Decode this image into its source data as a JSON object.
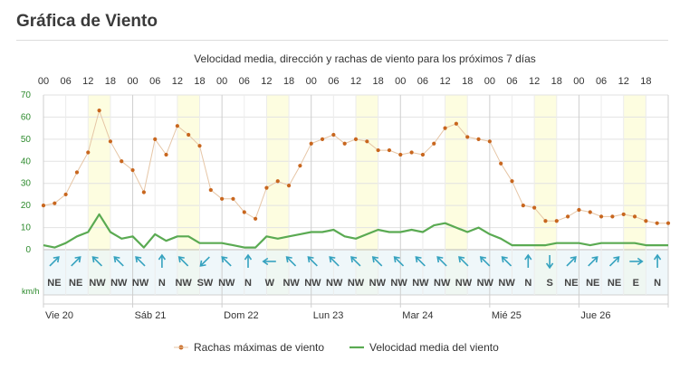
{
  "page": {
    "heading": "Gráfica de Viento"
  },
  "chart_data": {
    "type": "line",
    "title": "Velocidad media, dirección y rachas de viento para los próximos 7 días",
    "hour_labels": [
      "00",
      "06",
      "12",
      "18",
      "00",
      "06",
      "12",
      "18",
      "00",
      "06",
      "12",
      "18",
      "00",
      "06",
      "12",
      "18",
      "00",
      "06",
      "12",
      "18",
      "00",
      "06",
      "12",
      "18",
      "00",
      "06",
      "12",
      "18"
    ],
    "y_ticks": [
      "70",
      "60",
      "50",
      "40",
      "30",
      "20",
      "10",
      "0"
    ],
    "ylim": [
      0,
      70
    ],
    "y_unit": "km/h",
    "days": [
      {
        "label": "Vie 20",
        "x_hours": 0
      },
      {
        "label": "Sáb 21",
        "x_hours": 24
      },
      {
        "label": "Dom 22",
        "x_hours": 48
      },
      {
        "label": "Lun 23",
        "x_hours": 72
      },
      {
        "label": "Mar 24",
        "x_hours": 96
      },
      {
        "label": "Mié 25",
        "x_hours": 120
      },
      {
        "label": "Jue 26",
        "x_hours": 144
      }
    ],
    "daylight_periods_hours": [
      [
        12,
        18
      ],
      [
        36,
        42
      ],
      [
        60,
        66
      ],
      [
        84,
        90
      ],
      [
        108,
        114
      ],
      [
        132,
        138
      ],
      [
        156,
        162
      ]
    ],
    "x_hours": [
      0,
      3,
      6,
      9,
      12,
      15,
      18,
      21,
      24,
      27,
      30,
      33,
      36,
      39,
      42,
      45,
      48,
      51,
      54,
      57,
      60,
      63,
      66,
      69,
      72,
      75,
      78,
      81,
      84,
      87,
      90,
      93,
      96,
      99,
      102,
      105,
      108,
      111,
      114,
      117,
      120,
      123,
      126,
      129,
      132,
      135,
      138,
      141,
      144,
      147,
      150,
      153,
      156,
      159,
      162,
      165,
      168
    ],
    "series": [
      {
        "name": "Rachas máximas de viento",
        "color": "#c8661e",
        "values": [
          20,
          21,
          25,
          35,
          44,
          63,
          49,
          40,
          36,
          26,
          50,
          43,
          56,
          52,
          47,
          27,
          23,
          23,
          17,
          14,
          28,
          31,
          29,
          38,
          48,
          50,
          52,
          48,
          50,
          49,
          45,
          45,
          43,
          44,
          43,
          48,
          55,
          57,
          51,
          50,
          49,
          39,
          31,
          20,
          19,
          13,
          13,
          15,
          18,
          17,
          15,
          15,
          16,
          15,
          13,
          12,
          12
        ]
      },
      {
        "name": "Velocidad media del viento",
        "color": "#5aaa52",
        "values": [
          2,
          1,
          3,
          6,
          8,
          16,
          8,
          5,
          6,
          1,
          7,
          4,
          6,
          6,
          3,
          3,
          3,
          2,
          1,
          1,
          6,
          5,
          6,
          7,
          8,
          8,
          9,
          6,
          5,
          7,
          9,
          8,
          8,
          9,
          8,
          11,
          12,
          10,
          8,
          10,
          7,
          5,
          2,
          2,
          2,
          2,
          3,
          3,
          3,
          2,
          3,
          3,
          3,
          3,
          2,
          2,
          2
        ]
      }
    ],
    "wind_directions": [
      "NE",
      "NE",
      "NW",
      "NW",
      "NW",
      "N",
      "NW",
      "SW",
      "NW",
      "N",
      "W",
      "NW",
      "NW",
      "NW",
      "NW",
      "NW",
      "NW",
      "NW",
      "NW",
      "NW",
      "NW",
      "NW",
      "N",
      "S",
      "NE",
      "NE",
      "NE",
      "E",
      "N"
    ],
    "legend_position": "bottom",
    "colors": {
      "gust": "#c8661e",
      "gust_line": "#e6c6a6",
      "mean": "#5aaa52",
      "daylight": "#fdfde0",
      "dir_panel": "#eaf4f8",
      "arrow": "#35a2bf",
      "axis_green": "#2e8b2e"
    }
  }
}
